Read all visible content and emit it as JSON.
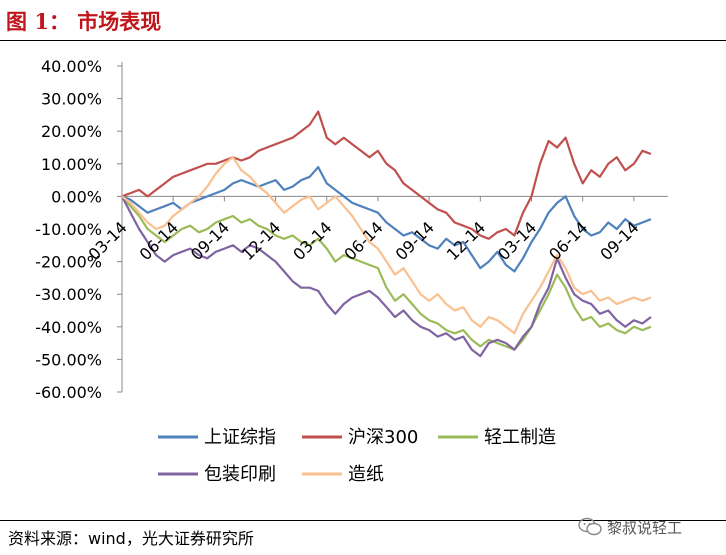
{
  "figure": {
    "label": "图",
    "number": "1",
    "colon": "：",
    "title": "市场表现"
  },
  "source": "资料来源：wind，光大证券研究所",
  "watermark": "黎叔说轻工",
  "chart_data": {
    "type": "line",
    "ylim": [
      -60,
      40
    ],
    "y_ticks": [
      40,
      30,
      20,
      10,
      0,
      -10,
      -20,
      -30,
      -40,
      -50,
      -60
    ],
    "y_tick_labels": [
      "40.00%",
      "30.00%",
      "20.00%",
      "10.00%",
      "0.00%",
      "-10.00%",
      "-20.00%",
      "-30.00%",
      "-40.00%",
      "-50.00%",
      "-60.00%"
    ],
    "x_tick_labels": [
      "03-14",
      "06-14",
      "09-14",
      "12-14",
      "03-14",
      "06-14",
      "09-14",
      "12-14",
      "03-14",
      "06-14",
      "09-14"
    ],
    "x_tick_positions": [
      0,
      3,
      6,
      9,
      12,
      15,
      18,
      21,
      24,
      27,
      30
    ],
    "xlim": [
      0,
      32
    ],
    "legend_position": "bottom",
    "series": [
      {
        "name": "上证综指",
        "color": "#4f81bd",
        "x": [
          0,
          0.5,
          1,
          1.5,
          2,
          2.5,
          3,
          3.5,
          4,
          4.5,
          5,
          5.5,
          6,
          6.5,
          7,
          7.5,
          8,
          8.5,
          9,
          9.5,
          10,
          10.5,
          11,
          11.5,
          12,
          12.5,
          13,
          13.5,
          14,
          14.5,
          15,
          15.5,
          16,
          16.5,
          17,
          17.5,
          18,
          18.5,
          19,
          19.5,
          20,
          20.5,
          21,
          21.5,
          22,
          22.5,
          23,
          23.5,
          24,
          24.5,
          25,
          25.5,
          26,
          26.5,
          27,
          27.5,
          28,
          28.5,
          29,
          29.5,
          30,
          30.5,
          31
        ],
        "y": [
          0,
          -1,
          -3,
          -5,
          -4,
          -3,
          -2,
          -4,
          -2,
          -1,
          0,
          1,
          2,
          4,
          5,
          4,
          3,
          4,
          5,
          2,
          3,
          5,
          6,
          9,
          4,
          2,
          0,
          -2,
          -3,
          -4,
          -5,
          -8,
          -10,
          -12,
          -11,
          -13,
          -15,
          -16,
          -13,
          -15,
          -14,
          -18,
          -22,
          -20,
          -17,
          -21,
          -23,
          -19,
          -14,
          -10,
          -5,
          -2,
          0,
          -6,
          -10,
          -12,
          -11,
          -8,
          -10,
          -7,
          -9,
          -8,
          -7
        ]
      },
      {
        "name": "沪深300",
        "color": "#c0504d",
        "x": [
          0,
          0.5,
          1,
          1.5,
          2,
          2.5,
          3,
          3.5,
          4,
          4.5,
          5,
          5.5,
          6,
          6.5,
          7,
          7.5,
          8,
          8.5,
          9,
          9.5,
          10,
          10.5,
          11,
          11.5,
          12,
          12.5,
          13,
          13.5,
          14,
          14.5,
          15,
          15.5,
          16,
          16.5,
          17,
          17.5,
          18,
          18.5,
          19,
          19.5,
          20,
          20.5,
          21,
          21.5,
          22,
          22.5,
          23,
          23.5,
          24,
          24.5,
          25,
          25.5,
          26,
          26.5,
          27,
          27.5,
          28,
          28.5,
          29,
          29.5,
          30,
          30.5,
          31
        ],
        "y": [
          0,
          1,
          2,
          0,
          2,
          4,
          6,
          7,
          8,
          9,
          10,
          10,
          11,
          12,
          11,
          12,
          14,
          15,
          16,
          17,
          18,
          20,
          22,
          26,
          18,
          16,
          18,
          16,
          14,
          12,
          14,
          10,
          8,
          4,
          2,
          0,
          -2,
          -4,
          -5,
          -8,
          -9,
          -10,
          -12,
          -13,
          -11,
          -10,
          -12,
          -5,
          0,
          10,
          17,
          15,
          18,
          10,
          4,
          8,
          6,
          10,
          12,
          8,
          10,
          14,
          13
        ]
      },
      {
        "name": "轻工制造",
        "color": "#9bbb59",
        "x": [
          0,
          0.5,
          1,
          1.5,
          2,
          2.5,
          3,
          3.5,
          4,
          4.5,
          5,
          5.5,
          6,
          6.5,
          7,
          7.5,
          8,
          8.5,
          9,
          9.5,
          10,
          10.5,
          11,
          11.5,
          12,
          12.5,
          13,
          13.5,
          14,
          14.5,
          15,
          15.5,
          16,
          16.5,
          17,
          17.5,
          18,
          18.5,
          19,
          19.5,
          20,
          20.5,
          21,
          21.5,
          22,
          22.5,
          23,
          23.5,
          24,
          24.5,
          25,
          25.5,
          26,
          26.5,
          27,
          27.5,
          28,
          28.5,
          29,
          29.5,
          30,
          30.5,
          31
        ],
        "y": [
          0,
          -3,
          -6,
          -10,
          -12,
          -14,
          -12,
          -10,
          -9,
          -11,
          -10,
          -8,
          -7,
          -6,
          -8,
          -7,
          -9,
          -10,
          -12,
          -13,
          -12,
          -14,
          -15,
          -13,
          -16,
          -20,
          -18,
          -19,
          -20,
          -21,
          -22,
          -28,
          -32,
          -30,
          -33,
          -36,
          -38,
          -39,
          -41,
          -42,
          -41,
          -44,
          -46,
          -44,
          -45,
          -46,
          -47,
          -44,
          -40,
          -35,
          -30,
          -24,
          -28,
          -34,
          -38,
          -37,
          -40,
          -39,
          -41,
          -42,
          -40,
          -41,
          -40
        ]
      },
      {
        "name": "包装印刷",
        "color": "#8064a2",
        "x": [
          0,
          0.5,
          1,
          1.5,
          2,
          2.5,
          3,
          3.5,
          4,
          4.5,
          5,
          5.5,
          6,
          6.5,
          7,
          7.5,
          8,
          8.5,
          9,
          9.5,
          10,
          10.5,
          11,
          11.5,
          12,
          12.5,
          13,
          13.5,
          14,
          14.5,
          15,
          15.5,
          16,
          16.5,
          17,
          17.5,
          18,
          18.5,
          19,
          19.5,
          20,
          20.5,
          21,
          21.5,
          22,
          22.5,
          23,
          23.5,
          24,
          24.5,
          25,
          25.5,
          26,
          26.5,
          27,
          27.5,
          28,
          28.5,
          29,
          29.5,
          30,
          30.5,
          31
        ],
        "y": [
          0,
          -5,
          -10,
          -14,
          -18,
          -20,
          -18,
          -17,
          -16,
          -18,
          -19,
          -17,
          -16,
          -15,
          -17,
          -15,
          -16,
          -18,
          -20,
          -23,
          -26,
          -28,
          -28,
          -29,
          -33,
          -36,
          -33,
          -31,
          -30,
          -29,
          -31,
          -34,
          -37,
          -35,
          -38,
          -40,
          -41,
          -43,
          -42,
          -44,
          -43,
          -47,
          -49,
          -45,
          -44,
          -45,
          -47,
          -43,
          -40,
          -33,
          -28,
          -19,
          -25,
          -30,
          -32,
          -33,
          -36,
          -35,
          -38,
          -40,
          -38,
          -39,
          -37
        ]
      },
      {
        "name": "造纸",
        "color": "#fac090",
        "x": [
          0,
          0.5,
          1,
          1.5,
          2,
          2.5,
          3,
          3.5,
          4,
          4.5,
          5,
          5.5,
          6,
          6.5,
          7,
          7.5,
          8,
          8.5,
          9,
          9.5,
          10,
          10.5,
          11,
          11.5,
          12,
          12.5,
          13,
          13.5,
          14,
          14.5,
          15,
          15.5,
          16,
          16.5,
          17,
          17.5,
          18,
          18.5,
          19,
          19.5,
          20,
          20.5,
          21,
          21.5,
          22,
          22.5,
          23,
          23.5,
          24,
          24.5,
          25,
          25.5,
          26,
          26.5,
          27,
          27.5,
          28,
          28.5,
          29,
          29.5,
          30,
          30.5,
          31
        ],
        "y": [
          0,
          -2,
          -5,
          -8,
          -10,
          -9,
          -6,
          -4,
          -2,
          0,
          3,
          7,
          10,
          12,
          8,
          6,
          3,
          1,
          -2,
          -5,
          -3,
          -1,
          0,
          -4,
          -2,
          0,
          -3,
          -6,
          -10,
          -14,
          -16,
          -20,
          -24,
          -22,
          -26,
          -30,
          -32,
          -30,
          -33,
          -35,
          -34,
          -38,
          -40,
          -37,
          -38,
          -40,
          -42,
          -36,
          -32,
          -28,
          -23,
          -18,
          -22,
          -28,
          -30,
          -29,
          -32,
          -31,
          -33,
          -32,
          -31,
          -32,
          -31
        ]
      }
    ]
  }
}
